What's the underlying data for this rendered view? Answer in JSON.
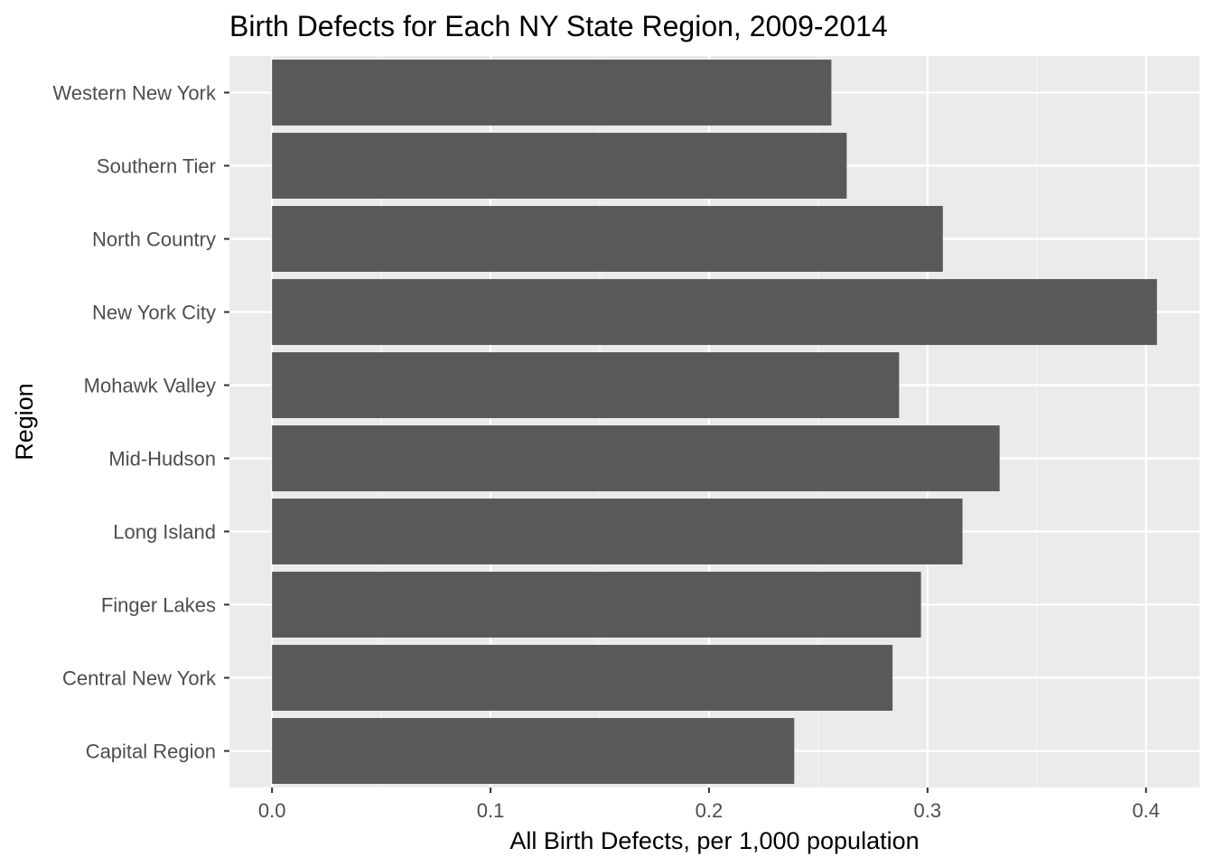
{
  "chart_data": {
    "type": "bar",
    "orientation": "horizontal",
    "title": "Birth Defects for Each NY State Region, 2009-2014",
    "xlabel": "All Birth Defects, per 1,000 population",
    "ylabel": "Region",
    "categories": [
      "Capital Region",
      "Central New York",
      "Finger Lakes",
      "Long Island",
      "Mid-Hudson",
      "Mohawk Valley",
      "New York City",
      "North Country",
      "Southern Tier",
      "Western New York"
    ],
    "values": [
      0.239,
      0.284,
      0.297,
      0.316,
      0.333,
      0.287,
      0.405,
      0.307,
      0.263,
      0.256
    ],
    "xlim": [
      -0.0195,
      0.4245
    ],
    "xticks": [
      {
        "value": 0.0,
        "label": "0.0"
      },
      {
        "value": 0.1,
        "label": "0.1"
      },
      {
        "value": 0.2,
        "label": "0.2"
      },
      {
        "value": 0.3,
        "label": "0.3"
      },
      {
        "value": 0.4,
        "label": "0.4"
      }
    ],
    "grid": true,
    "colors": {
      "bar": "#595959",
      "panel": "#ebebeb",
      "grid_major": "#ffffff",
      "grid_minor": "#f7f7f7",
      "tick": "#333333"
    }
  }
}
